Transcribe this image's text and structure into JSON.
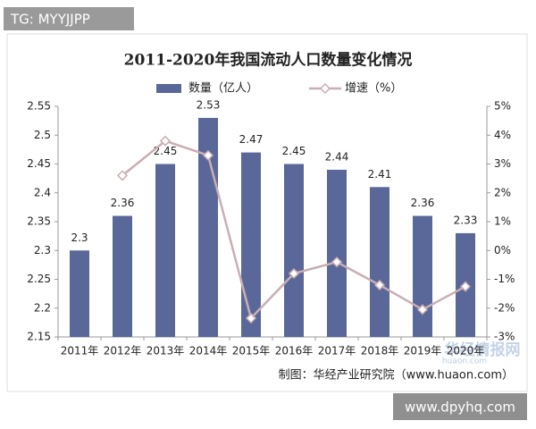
{
  "chart_data": {
    "type": "bar-line",
    "title": "2011-2020年我国流动人口数量变化情况",
    "source": "制图：华经产业研究院（www.huaon.com）",
    "categories": [
      "2011年",
      "2012年",
      "2013年",
      "2014年",
      "2015年",
      "2016年",
      "2017年",
      "2018年",
      "2019年",
      "2020年"
    ],
    "series": [
      {
        "name": "数量（亿人）",
        "type": "bar",
        "color": "#5a6899",
        "values": [
          2.3,
          2.36,
          2.45,
          2.53,
          2.47,
          2.45,
          2.44,
          2.41,
          2.36,
          2.33
        ]
      },
      {
        "name": "增速（%）",
        "type": "line",
        "axis": "y2",
        "color": "#c9aeb2",
        "values": [
          null,
          2.6,
          3.8,
          3.3,
          -2.35,
          -0.8,
          -0.4,
          -1.2,
          -2.05,
          -1.25
        ]
      }
    ],
    "ylim": [
      2.15,
      2.55
    ],
    "yticks": [
      2.15,
      2.2,
      2.25,
      2.3,
      2.35,
      2.4,
      2.45,
      2.5,
      2.55
    ],
    "y2lim": [
      -3,
      5
    ],
    "y2ticks": [
      {
        "value": -3,
        "label": "-3%"
      },
      {
        "value": -2,
        "label": "-2%"
      },
      {
        "value": -1,
        "label": "-1%"
      },
      {
        "value": 0,
        "label": "0%"
      },
      {
        "value": 1,
        "label": "1%"
      },
      {
        "value": 2,
        "label": "2%"
      },
      {
        "value": 3,
        "label": "3%"
      },
      {
        "value": 4,
        "label": "4%"
      },
      {
        "value": 5,
        "label": "5%"
      }
    ]
  },
  "watermarks": {
    "tag": "TG: MYYJJPP",
    "brand": "华经情报网",
    "brand_url": "huaon.com",
    "site": "www.dpyhq.com"
  }
}
